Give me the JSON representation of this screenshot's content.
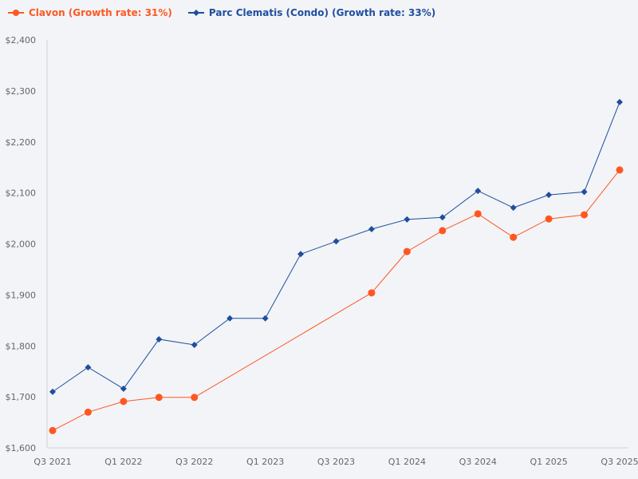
{
  "chart_data": {
    "type": "line",
    "title": "",
    "xlabel": "",
    "ylabel": "",
    "ylim": [
      1600,
      2400
    ],
    "yticks": [
      "$1,600",
      "$1,700",
      "$1,800",
      "$1,900",
      "$2,000",
      "$2,100",
      "$2,200",
      "$2,300",
      "$2,400"
    ],
    "ytick_values": [
      1600,
      1700,
      1800,
      1900,
      2000,
      2100,
      2200,
      2300,
      2400
    ],
    "x": [
      "Q3 2021",
      "Q4 2021",
      "Q1 2022",
      "Q2 2022",
      "Q3 2022",
      "Q4 2022",
      "Q1 2023",
      "Q2 2023",
      "Q3 2023",
      "Q4 2023",
      "Q1 2024",
      "Q2 2024",
      "Q3 2024",
      "Q4 2024",
      "Q1 2025",
      "Q2 2025",
      "Q3 2025"
    ],
    "xticks": [
      "Q3 2021",
      "Q1 2022",
      "Q3 2022",
      "Q1 2023",
      "Q3 2023",
      "Q1 2024",
      "Q3 2024",
      "Q1 2025",
      "Q3 2025"
    ],
    "grid": false,
    "legend_position": "top-left",
    "series": [
      {
        "name": "Clavon (Growth rate: 31%)",
        "color": "#ff5722",
        "marker": "circle",
        "values": [
          1634,
          1670,
          1691,
          1699,
          1699,
          null,
          null,
          null,
          null,
          1904,
          1985,
          2026,
          2059,
          2013,
          2049,
          2057,
          2145
        ]
      },
      {
        "name": "Parc Clematis (Condo) (Growth rate: 33%)",
        "color": "#1f4e9f",
        "marker": "diamond",
        "values": [
          1710,
          1758,
          1716,
          1813,
          1802,
          1854,
          1854,
          1980,
          2005,
          2029,
          2048,
          2052,
          2104,
          2071,
          2096,
          2102,
          2278
        ]
      }
    ]
  }
}
